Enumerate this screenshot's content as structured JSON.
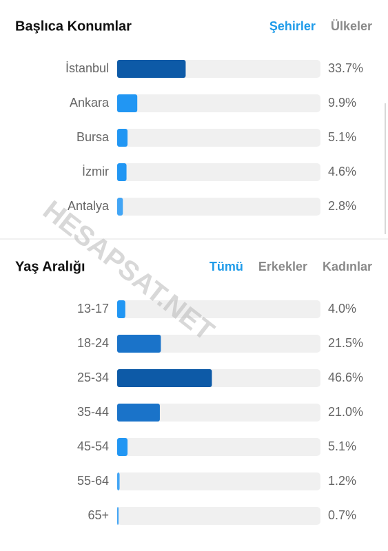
{
  "sections": [
    {
      "title": "Başlıca Konumlar",
      "tabs": [
        {
          "label": "Şehirler",
          "active": true
        },
        {
          "label": "Ülkeler",
          "active": false
        }
      ],
      "xlim": [
        0,
        100
      ],
      "rows": [
        {
          "label": "İstanbul",
          "value": 33.7,
          "value_label": "33.7%",
          "color": "#0d5aa7"
        },
        {
          "label": "Ankara",
          "value": 9.9,
          "value_label": "9.9%",
          "color": "#2196f3"
        },
        {
          "label": "Bursa",
          "value": 5.1,
          "value_label": "5.1%",
          "color": "#2196f3"
        },
        {
          "label": "İzmir",
          "value": 4.6,
          "value_label": "4.6%",
          "color": "#2196f3"
        },
        {
          "label": "Antalya",
          "value": 2.8,
          "value_label": "2.8%",
          "color": "#42a5f5"
        }
      ]
    },
    {
      "title": "Yaş Aralığı",
      "tabs": [
        {
          "label": "Tümü",
          "active": true
        },
        {
          "label": "Erkekler",
          "active": false
        },
        {
          "label": "Kadınlar",
          "active": false
        }
      ],
      "xlim": [
        0,
        100
      ],
      "rows": [
        {
          "label": "13-17",
          "value": 4.0,
          "value_label": "4.0%",
          "color": "#2196f3"
        },
        {
          "label": "18-24",
          "value": 21.5,
          "value_label": "21.5%",
          "color": "#1a73c9"
        },
        {
          "label": "25-34",
          "value": 46.6,
          "value_label": "46.6%",
          "color": "#0d5aa7"
        },
        {
          "label": "35-44",
          "value": 21.0,
          "value_label": "21.0%",
          "color": "#1a73c9"
        },
        {
          "label": "45-54",
          "value": 5.1,
          "value_label": "5.1%",
          "color": "#2196f3"
        },
        {
          "label": "55-64",
          "value": 1.2,
          "value_label": "1.2%",
          "color": "#42a5f5"
        },
        {
          "label": "65+",
          "value": 0.7,
          "value_label": "0.7%",
          "color": "#42a5f5"
        }
      ]
    }
  ],
  "watermark": "HESAPSAT.NET"
}
